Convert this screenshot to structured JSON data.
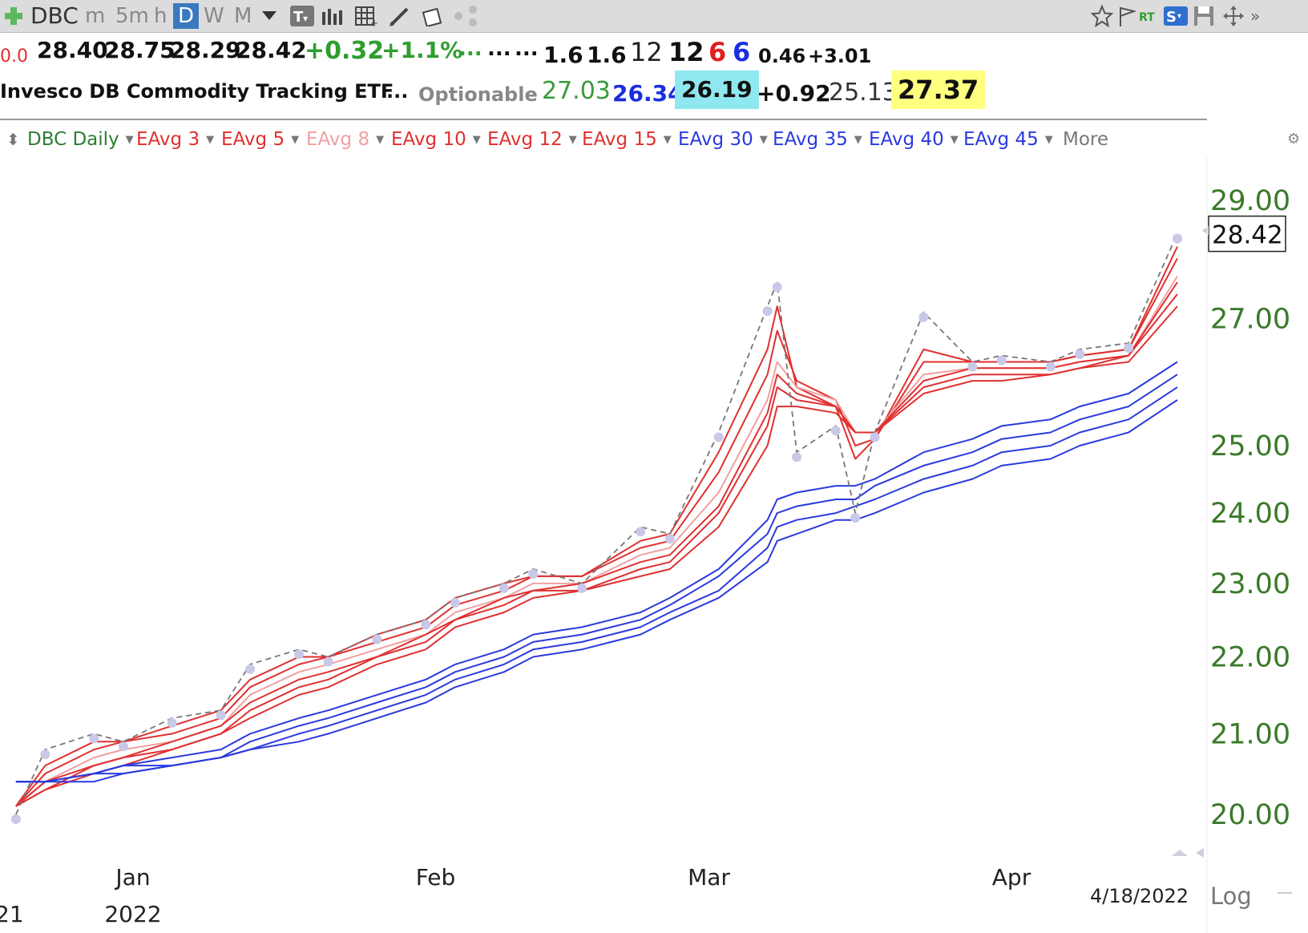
{
  "toolbar": {
    "symbol": "DBC",
    "tf_minute": "m",
    "tf_5min": "5m",
    "tf_hour": "h",
    "tf_day": "D",
    "tf_week": "W",
    "tf_month": "M"
  },
  "quote": {
    "first": "0.0",
    "open": "28.40",
    "high": "28.75",
    "low": "28.29",
    "last": "28.42",
    "change": "+0.32",
    "change_pct": "+1.1%",
    "dots1": "...",
    "dots2": "...",
    "dots3": "...",
    "v1": "1.6",
    "v2": "1.6",
    "v3": "12",
    "v4": "12",
    "v5": "6",
    "v6": "6",
    "v7": "0.46",
    "v8": "+3.01"
  },
  "info": {
    "name": "Invesco DB Commodity Tracking ETF",
    "dots": "...",
    "optionable": "Optionable",
    "p1": "27.03",
    "p2": "26.34",
    "p3": "26.19",
    "p4": "+0.92",
    "p5": "25.13",
    "p6": "27.37"
  },
  "studies": [
    {
      "label": "DBC Daily",
      "color": "#2e7d32"
    },
    {
      "label": "EAvg 3",
      "color": "#e03030"
    },
    {
      "label": "EAvg 5",
      "color": "#e03030"
    },
    {
      "label": "EAvg 8",
      "color": "#f0a0a0"
    },
    {
      "label": "EAvg 10",
      "color": "#e03030"
    },
    {
      "label": "EAvg 12",
      "color": "#e03030"
    },
    {
      "label": "EAvg 15",
      "color": "#e03030"
    },
    {
      "label": "EAvg 30",
      "color": "#2a3adf"
    },
    {
      "label": "EAvg 35",
      "color": "#2a3adf"
    },
    {
      "label": "EAvg 40",
      "color": "#2a3adf"
    },
    {
      "label": "EAvg 45",
      "color": "#2a3adf"
    }
  ],
  "more_label": "More",
  "colors": {
    "price_axis": "#3a7a2a",
    "short_avg": "#e03030",
    "short_avg_light": "#f0a0a0",
    "long_avg": "#2a3adf",
    "price_line": "#777777",
    "dots": "#c8c8e8",
    "highlight_cyan": "#8fe8f0",
    "highlight_yellow": "#ffff80"
  },
  "chart_data": {
    "type": "line",
    "y_scale": "log",
    "y_ticks": [
      "29.00",
      "27.00",
      "25.00",
      "24.00",
      "23.00",
      "22.00",
      "21.00",
      "20.00"
    ],
    "last_price_tag": "28.42",
    "x_ticks": [
      "Jan",
      "Feb",
      "Mar",
      "Apr"
    ],
    "year_label": "2022",
    "date_label": "4/18/2022",
    "scale_label": "Log",
    "left_cut_label": "21",
    "x": [
      "2021-12-20",
      "2021-12-23",
      "2021-12-28",
      "2021-12-31",
      "2022-01-05",
      "2022-01-10",
      "2022-01-13",
      "2022-01-18",
      "2022-01-21",
      "2022-01-26",
      "2022-01-31",
      "2022-02-03",
      "2022-02-08",
      "2022-02-11",
      "2022-02-16",
      "2022-02-22",
      "2022-02-25",
      "2022-03-02",
      "2022-03-07",
      "2022-03-08",
      "2022-03-10",
      "2022-03-14",
      "2022-03-16",
      "2022-03-18",
      "2022-03-23",
      "2022-03-28",
      "2022-03-31",
      "2022-04-05",
      "2022-04-08",
      "2022-04-13",
      "2022-04-18"
    ],
    "close": [
      20.0,
      20.8,
      21.0,
      20.9,
      21.2,
      21.3,
      21.9,
      22.1,
      22.0,
      22.3,
      22.5,
      22.8,
      23.0,
      23.2,
      23.0,
      23.8,
      23.7,
      25.2,
      27.2,
      27.6,
      24.9,
      25.3,
      24.0,
      25.2,
      27.1,
      26.3,
      26.4,
      26.3,
      26.5,
      26.6,
      28.42
    ],
    "series": [
      {
        "name": "EAvg 3",
        "values": [
          20.1,
          20.6,
          20.9,
          20.9,
          21.1,
          21.3,
          21.7,
          22.0,
          22.0,
          22.3,
          22.5,
          22.8,
          23.0,
          23.1,
          23.1,
          23.6,
          23.7,
          24.9,
          26.5,
          27.2,
          25.9,
          25.6,
          24.8,
          25.1,
          26.5,
          26.3,
          26.3,
          26.3,
          26.4,
          26.5,
          28.2
        ]
      },
      {
        "name": "EAvg 5",
        "values": [
          20.1,
          20.5,
          20.8,
          20.9,
          21.0,
          21.2,
          21.6,
          21.9,
          22.0,
          22.2,
          22.4,
          22.7,
          22.9,
          23.1,
          23.1,
          23.5,
          23.6,
          24.6,
          26.1,
          26.8,
          26.0,
          25.7,
          25.0,
          25.1,
          26.3,
          26.3,
          26.3,
          26.3,
          26.4,
          26.5,
          28.0
        ]
      },
      {
        "name": "EAvg 8",
        "values": [
          20.1,
          20.4,
          20.7,
          20.8,
          20.9,
          21.1,
          21.5,
          21.8,
          21.9,
          22.1,
          22.3,
          22.6,
          22.8,
          23.0,
          23.0,
          23.4,
          23.5,
          24.3,
          25.7,
          26.3,
          25.9,
          25.7,
          25.2,
          25.2,
          26.1,
          26.2,
          26.2,
          26.2,
          26.3,
          26.4,
          27.7
        ]
      },
      {
        "name": "EAvg 10",
        "values": [
          20.1,
          20.4,
          20.6,
          20.7,
          20.9,
          21.1,
          21.4,
          21.7,
          21.8,
          22.0,
          22.3,
          22.5,
          22.8,
          22.9,
          23.0,
          23.3,
          23.4,
          24.1,
          25.5,
          26.1,
          25.8,
          25.6,
          25.2,
          25.2,
          26.0,
          26.2,
          26.2,
          26.2,
          26.3,
          26.4,
          27.6
        ]
      },
      {
        "name": "EAvg 12",
        "values": [
          20.1,
          20.3,
          20.6,
          20.7,
          20.8,
          21.0,
          21.3,
          21.6,
          21.7,
          22.0,
          22.2,
          22.5,
          22.7,
          22.9,
          22.9,
          23.2,
          23.3,
          24.0,
          25.3,
          25.9,
          25.7,
          25.6,
          25.2,
          25.2,
          25.9,
          26.1,
          26.1,
          26.1,
          26.2,
          26.4,
          27.4
        ]
      },
      {
        "name": "EAvg 15",
        "values": [
          20.1,
          20.3,
          20.5,
          20.6,
          20.8,
          21.0,
          21.2,
          21.5,
          21.6,
          21.9,
          22.1,
          22.4,
          22.6,
          22.8,
          22.9,
          23.1,
          23.2,
          23.8,
          25.0,
          25.6,
          25.6,
          25.5,
          25.2,
          25.2,
          25.8,
          26.0,
          26.0,
          26.1,
          26.2,
          26.3,
          27.2
        ]
      },
      {
        "name": "EAvg 30",
        "values": [
          20.4,
          20.4,
          20.5,
          20.6,
          20.7,
          20.8,
          21.0,
          21.2,
          21.3,
          21.5,
          21.7,
          21.9,
          22.1,
          22.3,
          22.4,
          22.6,
          22.8,
          23.2,
          23.9,
          24.2,
          24.3,
          24.4,
          24.4,
          24.5,
          24.9,
          25.1,
          25.3,
          25.4,
          25.6,
          25.8,
          26.3
        ]
      },
      {
        "name": "EAvg 35",
        "values": [
          20.4,
          20.4,
          20.5,
          20.6,
          20.6,
          20.7,
          20.9,
          21.1,
          21.2,
          21.4,
          21.6,
          21.8,
          22.0,
          22.2,
          22.3,
          22.5,
          22.7,
          23.1,
          23.7,
          24.0,
          24.1,
          24.2,
          24.2,
          24.4,
          24.7,
          24.9,
          25.1,
          25.2,
          25.4,
          25.6,
          26.1
        ]
      },
      {
        "name": "EAvg 40",
        "values": [
          20.4,
          20.4,
          20.5,
          20.5,
          20.6,
          20.7,
          20.8,
          21.0,
          21.1,
          21.3,
          21.5,
          21.7,
          21.9,
          22.1,
          22.2,
          22.4,
          22.6,
          22.9,
          23.5,
          23.8,
          23.9,
          24.0,
          24.1,
          24.2,
          24.5,
          24.7,
          24.9,
          25.0,
          25.2,
          25.4,
          25.9
        ]
      },
      {
        "name": "EAvg 45",
        "values": [
          20.4,
          20.4,
          20.4,
          20.5,
          20.6,
          20.7,
          20.8,
          20.9,
          21.0,
          21.2,
          21.4,
          21.6,
          21.8,
          22.0,
          22.1,
          22.3,
          22.5,
          22.8,
          23.3,
          23.6,
          23.7,
          23.9,
          23.9,
          24.0,
          24.3,
          24.5,
          24.7,
          24.8,
          25.0,
          25.2,
          25.7
        ]
      }
    ]
  }
}
